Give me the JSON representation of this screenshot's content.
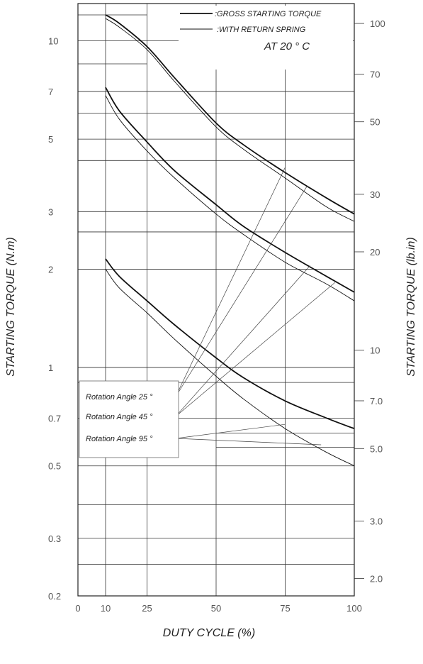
{
  "chart_data": {
    "type": "line",
    "xlabel": "DUTY CYCLE (%)",
    "ylabel": "STARTING TORQUE (N.m)",
    "y2label": "STARTING TORQUE (lb.in)",
    "x_scale": "linear",
    "y_scale": "log",
    "xlim": [
      0,
      100
    ],
    "ylim": [
      0.2,
      13
    ],
    "x_ticks": [
      0,
      10,
      25,
      50,
      75,
      100
    ],
    "y_ticks": [
      0.2,
      0.3,
      0.5,
      0.7,
      1,
      2,
      3,
      5,
      7,
      10
    ],
    "y_tick_labels": [
      "0.2",
      "0.3",
      "0.5",
      "0.7",
      "1",
      "2",
      "3",
      "5",
      "7",
      "10"
    ],
    "y2_ticks": [
      2.0,
      3.0,
      5.0,
      7.0,
      10,
      20,
      30,
      50,
      70,
      100
    ],
    "y2_tick_labels": [
      "2.0",
      "3.0",
      "5.0",
      "7.0",
      "10",
      "20",
      "30",
      "50",
      "70",
      "100"
    ],
    "grid": true,
    "legend": {
      "placement": "top-right",
      "entries": [
        ":GROSS STARTING TORQUE",
        ":WITH RETURN SPRING"
      ]
    },
    "condition": "AT 20 ° C",
    "series": [
      {
        "name": ":GROSS STARTING TORQUE",
        "group": "Rotation Angle 25 °",
        "x": [
          10,
          15,
          25,
          35,
          50,
          60,
          75,
          90,
          100
        ],
        "y": [
          12.0,
          11.3,
          9.6,
          7.7,
          5.6,
          4.8,
          3.95,
          3.3,
          2.95
        ]
      },
      {
        "name": ":WITH RETURN SPRING",
        "group": "Rotation Angle 25 °",
        "x": [
          10,
          15,
          25,
          35,
          50,
          60,
          75,
          90,
          100
        ],
        "y": [
          11.7,
          11.0,
          9.4,
          7.5,
          5.45,
          4.65,
          3.8,
          3.1,
          2.8
        ]
      },
      {
        "name": ":GROSS STARTING TORQUE",
        "group": "Rotation Angle 45 °",
        "x": [
          10,
          15,
          25,
          35,
          50,
          60,
          75,
          90,
          100
        ],
        "y": [
          7.2,
          6.1,
          4.9,
          4.0,
          3.15,
          2.7,
          2.25,
          1.9,
          1.7
        ]
      },
      {
        "name": ":WITH RETURN SPRING",
        "group": "Rotation Angle 45 °",
        "x": [
          10,
          15,
          25,
          35,
          50,
          60,
          75,
          90,
          100
        ],
        "y": [
          6.8,
          5.75,
          4.6,
          3.8,
          2.95,
          2.55,
          2.1,
          1.8,
          1.6
        ]
      },
      {
        "name": ":GROSS STARTING TORQUE",
        "group": "Rotation Angle 95 °",
        "x": [
          10,
          15,
          25,
          35,
          50,
          60,
          75,
          90,
          100
        ],
        "y": [
          2.15,
          1.9,
          1.6,
          1.35,
          1.07,
          0.93,
          0.79,
          0.7,
          0.65
        ]
      },
      {
        "name": ":WITH RETURN SPRING",
        "group": "Rotation Angle 95 °",
        "x": [
          10,
          15,
          25,
          35,
          50,
          60,
          75,
          90,
          100
        ],
        "y": [
          2.0,
          1.75,
          1.47,
          1.22,
          0.94,
          0.8,
          0.65,
          0.55,
          0.5
        ]
      }
    ],
    "annotations": [
      {
        "text": "Rotation Angle 25 °",
        "targets": [
          {
            "x": 75,
            "y": 4.1
          },
          {
            "x": 83,
            "y": 3.6
          }
        ]
      },
      {
        "text": "Rotation Angle 45 °",
        "targets": [
          {
            "x": 84,
            "y": 2.05
          },
          {
            "x": 93,
            "y": 1.82
          }
        ]
      },
      {
        "text": "Rotation Angle 95 °",
        "targets": [
          {
            "x": 75,
            "y": 0.67
          },
          {
            "x": 88,
            "y": 0.58
          }
        ]
      }
    ]
  }
}
